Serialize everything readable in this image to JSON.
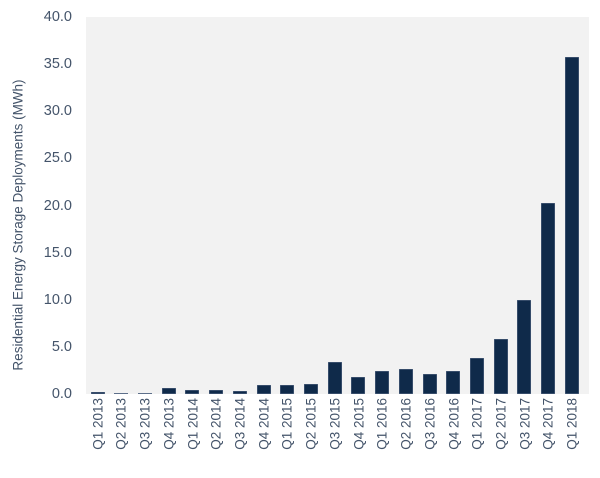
{
  "chart_data": {
    "type": "bar",
    "title": "",
    "xlabel": "",
    "ylabel": "Residential Energy Storage Deployments (MWh)",
    "ylim": [
      0,
      40
    ],
    "yticks": [
      "0.0",
      "5.0",
      "10.0",
      "15.0",
      "20.0",
      "25.0",
      "30.0",
      "35.0",
      "40.0"
    ],
    "grid": false,
    "legend": null,
    "categories": [
      "Q1 2013",
      "Q2 2013",
      "Q3 2013",
      "Q4 2013",
      "Q1 2014",
      "Q2 2014",
      "Q3 2014",
      "Q4 2014",
      "Q1 2015",
      "Q2 2015",
      "Q3 2015",
      "Q4 2015",
      "Q1 2016",
      "Q2 2016",
      "Q3 2016",
      "Q4 2016",
      "Q1 2017",
      "Q2 2017",
      "Q3 2017",
      "Q4 2017",
      "Q1 2018"
    ],
    "values": [
      0.2,
      0.1,
      0.1,
      0.6,
      0.45,
      0.45,
      0.35,
      1.0,
      1.0,
      1.1,
      3.4,
      1.8,
      2.45,
      2.6,
      2.1,
      2.4,
      3.8,
      5.8,
      10.0,
      20.3,
      35.8
    ],
    "colors": {
      "bar": "#0f2a4a",
      "plot_background": "#f2f2f2",
      "text": "#44546a"
    }
  }
}
